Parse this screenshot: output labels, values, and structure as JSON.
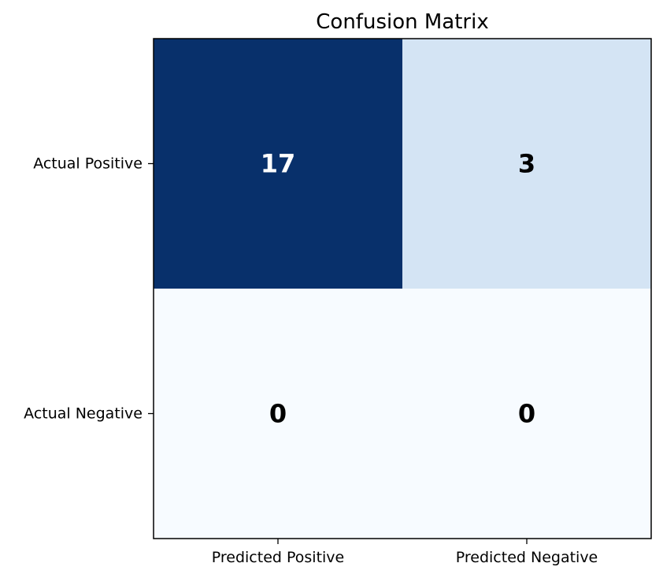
{
  "chart_data": {
    "type": "heatmap",
    "title": "Confusion Matrix",
    "x_categories": [
      "Predicted Positive",
      "Predicted Negative"
    ],
    "y_categories": [
      "Actual Positive",
      "Actual Negative"
    ],
    "values": [
      [
        17,
        3
      ],
      [
        0,
        0
      ]
    ],
    "vmin": 0,
    "vmax": 17,
    "colormap": "Blues",
    "colors": {
      "low": "#f7fbff",
      "high": "#08306b",
      "dark_text": "#000000",
      "light_text": "#ffffff"
    },
    "grid": false
  }
}
